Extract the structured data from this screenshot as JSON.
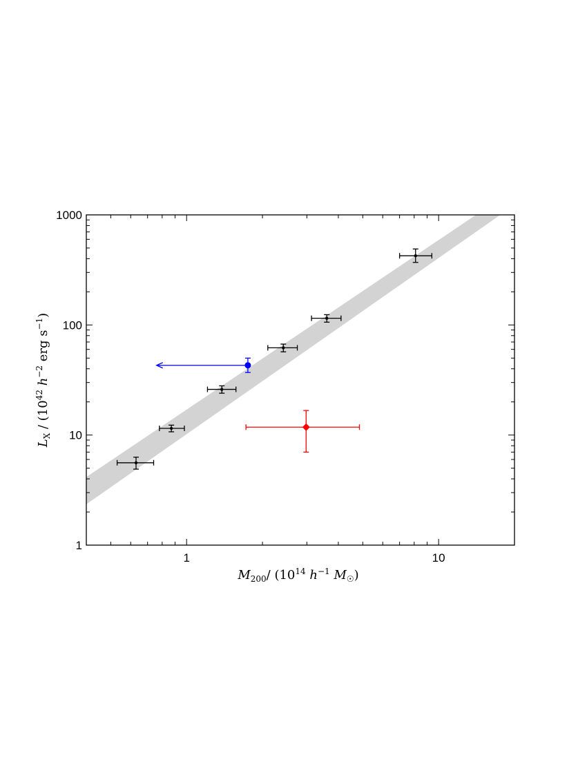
{
  "chart_data": {
    "type": "scatter",
    "title": "",
    "xlabel": "M200/ (10^14 h^-1 M☉)",
    "ylabel": "LX / (10^42 h^-2 erg s^-1)",
    "x_scale": "log",
    "y_scale": "log",
    "xlim": [
      0.4,
      20
    ],
    "ylim": [
      1,
      1000
    ],
    "grid": false,
    "x_ticks": [
      {
        "value": 1,
        "label": "1"
      },
      {
        "value": 10,
        "label": "10"
      }
    ],
    "y_ticks": [
      {
        "value": 1,
        "label": "1"
      },
      {
        "value": 10,
        "label": "10"
      },
      {
        "value": 100,
        "label": "100"
      },
      {
        "value": 1000,
        "label": "1000"
      }
    ],
    "band": {
      "color": "#d3d3d3",
      "lower": [
        {
          "x": 0.4,
          "y": 2.35
        },
        {
          "x": 20,
          "y": 1230
        }
      ],
      "upper": [
        {
          "x": 0.4,
          "y": 4.15
        },
        {
          "x": 20,
          "y": 1720
        }
      ]
    },
    "series": [
      {
        "color": "#000000",
        "marker": "dot",
        "points": [
          {
            "x": 0.63,
            "xlo": 0.53,
            "xhi": 0.74,
            "y": 5.6,
            "ylo": 4.9,
            "yhi": 6.3
          },
          {
            "x": 0.87,
            "xlo": 0.78,
            "xhi": 0.98,
            "y": 11.5,
            "ylo": 10.7,
            "yhi": 12.3
          },
          {
            "x": 1.38,
            "xlo": 1.21,
            "xhi": 1.57,
            "y": 26.0,
            "ylo": 24.0,
            "yhi": 28.0
          },
          {
            "x": 2.42,
            "xlo": 2.1,
            "xhi": 2.75,
            "y": 62.0,
            "ylo": 57.0,
            "yhi": 67.0
          },
          {
            "x": 3.6,
            "xlo": 3.13,
            "xhi": 4.1,
            "y": 115.0,
            "ylo": 106.0,
            "yhi": 124.0
          },
          {
            "x": 8.1,
            "xlo": 7.0,
            "xhi": 9.4,
            "y": 425.0,
            "ylo": 370.0,
            "yhi": 490.0
          }
        ]
      },
      {
        "color": "#0000ff",
        "marker": "circle",
        "upper_limit_x": true,
        "arrow_to_x": 0.76,
        "points": [
          {
            "x": 1.75,
            "y": 43.0,
            "ylo": 37.0,
            "yhi": 50.0
          }
        ]
      },
      {
        "color": "#ff0000",
        "marker": "diamond",
        "points": [
          {
            "x": 2.98,
            "xlo": 1.72,
            "xhi": 4.85,
            "y": 11.8,
            "ylo": 7.0,
            "yhi": 16.7
          }
        ]
      }
    ]
  }
}
